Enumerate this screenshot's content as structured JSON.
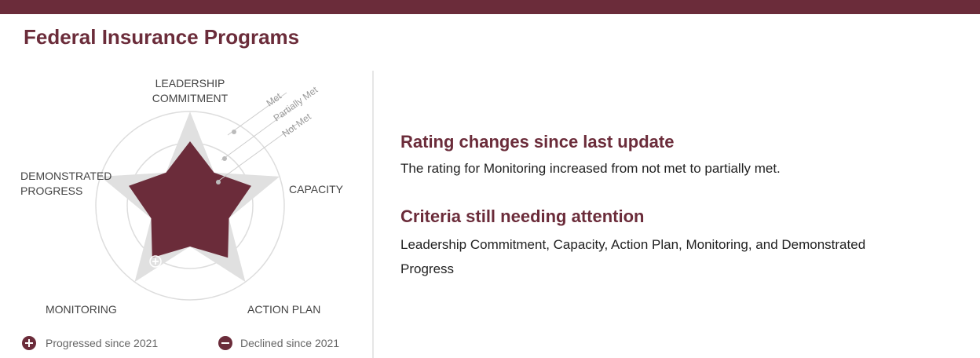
{
  "header": {
    "title": "Federal Insurance Programs"
  },
  "criteria": [
    "LEADERSHIP COMMITMENT",
    "CAPACITY",
    "ACTION PLAN",
    "MONITORING",
    "DEMONSTRATED PROGRESS"
  ],
  "scale": [
    "Met",
    "Partially Met",
    "Not Met"
  ],
  "legend": [
    "Progressed since 2021",
    "Declined since 2021"
  ],
  "sections": [
    {
      "heading": "Rating changes since last update",
      "body": "The rating for Monitoring increased from not met to partially met."
    },
    {
      "heading": "Criteria still needing attention",
      "body": "Leadership Commitment, Capacity, Action Plan, Monitoring, and Demonstrated Progress"
    }
  ]
}
